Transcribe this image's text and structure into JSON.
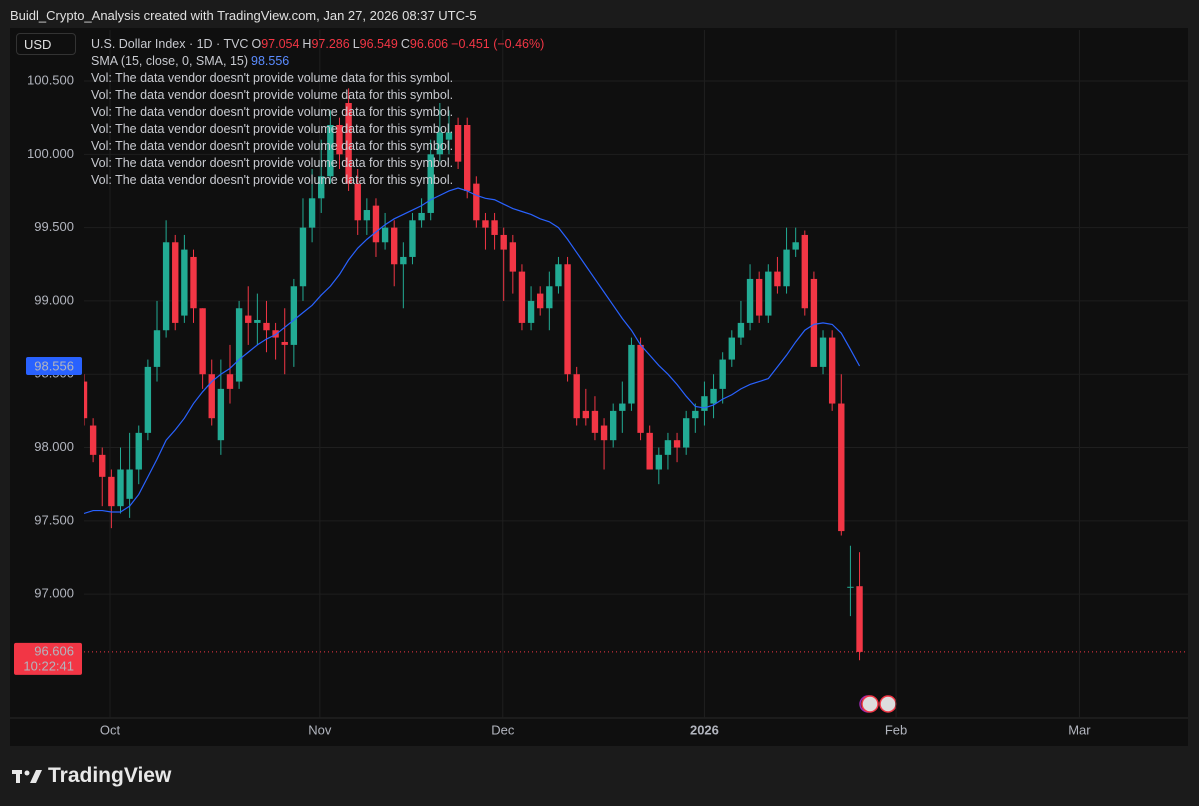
{
  "header": "Buidl_Crypto_Analysis created with TradingView.com, Jan 27, 2026 08:37 UTC-5",
  "brand": "TradingView",
  "chart_data": {
    "type": "candlestick",
    "currency": "USD",
    "title": "U.S. Dollar Index · 1D · TVC",
    "ohlc_labels": [
      "O",
      "H",
      "L",
      "C"
    ],
    "change": "−0.451 (−0.46%)",
    "countdown": "10:22:41",
    "vol_notes": [
      "Vol: The data vendor doesn't provide volume data for this symbol.",
      "Vol: The data vendor doesn't provide volume data for this symbol.",
      "Vol: The data vendor doesn't provide volume data for this symbol.",
      "Vol: The data vendor doesn't provide volume data for this symbol.",
      "Vol: The data vendor doesn't provide volume data for this symbol.",
      "Vol: The data vendor doesn't provide volume data for this symbol.",
      "Vol: The data vendor doesn't provide volume data for this symbol."
    ],
    "up_color": "#22ab94",
    "down_color": "#f23645",
    "grid": true,
    "xlim": [
      0,
      121
    ],
    "xticks": [
      {
        "value": 2.85,
        "label": "Oct"
      },
      {
        "value": 25.85,
        "label": "Nov"
      },
      {
        "value": 45.9,
        "label": "Dec"
      },
      {
        "value": 68.0,
        "label": "2026"
      },
      {
        "value": 89.0,
        "label": "Feb"
      },
      {
        "value": 109.1,
        "label": "Mar"
      }
    ],
    "ylim": [
      96.155,
      100.848
    ],
    "yticks": [
      {
        "value": 97,
        "label": "97.000"
      },
      {
        "value": 97.5,
        "label": "97.500"
      },
      {
        "value": 98,
        "label": "98.000"
      },
      {
        "value": 98.5,
        "label": "98.500"
      },
      {
        "value": 99,
        "label": "99.000"
      },
      {
        "value": 99.5,
        "label": "99.500"
      },
      {
        "value": 100,
        "label": "100.000"
      },
      {
        "value": 100.5,
        "label": "100.500"
      }
    ],
    "open": [
      98.45,
      98.15,
      97.95,
      97.8,
      97.6,
      97.65,
      97.85,
      98.1,
      98.55,
      98.8,
      99.4,
      98.9,
      99.3,
      98.95,
      98.5,
      98.05,
      98.5,
      98.45,
      98.9,
      98.85,
      98.85,
      98.8,
      98.72,
      98.7,
      99.1,
      99.5,
      99.7,
      99.85,
      100.2,
      100.35,
      99.8,
      99.55,
      99.65,
      99.4,
      99.5,
      99.25,
      99.3,
      99.55,
      99.6,
      100.0,
      100.1,
      100.2,
      100.2,
      99.8,
      99.55,
      99.55,
      99.45,
      99.4,
      99.2,
      98.85,
      99.05,
      98.95,
      99.1,
      99.25,
      98.5,
      98.25,
      98.25,
      98.15,
      98.05,
      98.25,
      98.3,
      98.7,
      98.1,
      97.85,
      97.95,
      98.05,
      98.0,
      98.2,
      98.25,
      98.3,
      98.4,
      98.6,
      98.75,
      98.85,
      99.15,
      98.9,
      99.2,
      99.1,
      99.35,
      99.45,
      99.15,
      98.55,
      98.75,
      98.3,
      97.05,
      97.054
    ],
    "high": [
      98.5,
      98.2,
      98.0,
      97.85,
      98.0,
      98.1,
      98.15,
      98.6,
      99.0,
      99.55,
      99.45,
      99.45,
      99.35,
      98.95,
      98.6,
      98.6,
      98.7,
      99.0,
      99.1,
      99.05,
      99.0,
      98.85,
      98.95,
      99.15,
      99.7,
      99.9,
      100.1,
      100.3,
      100.25,
      100.45,
      99.9,
      99.7,
      99.7,
      99.6,
      99.55,
      99.4,
      99.6,
      99.7,
      100.1,
      100.35,
      100.3,
      100.25,
      100.25,
      99.85,
      99.6,
      99.6,
      99.5,
      99.45,
      99.25,
      99.1,
      99.1,
      99.2,
      99.3,
      99.3,
      98.55,
      98.4,
      98.35,
      98.2,
      98.3,
      98.45,
      98.75,
      98.75,
      98.15,
      98.0,
      98.1,
      98.1,
      98.25,
      98.3,
      98.45,
      98.5,
      98.65,
      98.8,
      99.0,
      99.25,
      99.2,
      99.25,
      99.3,
      99.5,
      99.5,
      99.48,
      99.2,
      98.8,
      98.8,
      98.5,
      97.33,
      97.286
    ],
    "low": [
      98.15,
      97.9,
      97.6,
      97.45,
      97.55,
      97.52,
      97.75,
      98.05,
      98.45,
      98.75,
      98.8,
      98.85,
      98.85,
      98.4,
      98.15,
      97.95,
      98.3,
      98.4,
      98.7,
      98.7,
      98.65,
      98.6,
      98.5,
      98.55,
      99.0,
      99.4,
      99.6,
      99.8,
      99.9,
      99.75,
      99.45,
      99.45,
      99.3,
      99.35,
      99.1,
      98.95,
      99.25,
      99.5,
      99.55,
      99.95,
      100.0,
      99.9,
      99.7,
      99.5,
      99.35,
      99.35,
      99.0,
      99.05,
      98.8,
      98.8,
      98.9,
      98.8,
      99.05,
      98.45,
      98.15,
      98.15,
      98.05,
      97.85,
      98.0,
      98.1,
      98.25,
      98.05,
      97.85,
      97.75,
      97.85,
      97.9,
      97.95,
      98.1,
      98.15,
      98.2,
      98.3,
      98.55,
      98.7,
      98.8,
      98.85,
      98.85,
      99.05,
      99.05,
      99.3,
      98.9,
      98.55,
      98.5,
      98.25,
      97.4,
      96.85,
      96.549
    ],
    "close": [
      98.2,
      97.95,
      97.8,
      97.6,
      97.85,
      97.85,
      98.1,
      98.55,
      98.8,
      99.4,
      98.85,
      99.35,
      98.95,
      98.5,
      98.2,
      98.4,
      98.4,
      98.95,
      98.85,
      98.87,
      98.8,
      98.75,
      98.7,
      99.1,
      99.5,
      99.7,
      99.85,
      100.2,
      100.0,
      99.8,
      99.55,
      99.62,
      99.4,
      99.5,
      99.25,
      99.3,
      99.55,
      99.6,
      100.0,
      100.15,
      100.15,
      99.95,
      99.75,
      99.55,
      99.5,
      99.45,
      99.35,
      99.2,
      98.85,
      99.0,
      98.95,
      99.1,
      99.25,
      98.5,
      98.2,
      98.2,
      98.1,
      98.05,
      98.25,
      98.3,
      98.7,
      98.1,
      97.85,
      97.95,
      98.05,
      98.0,
      98.2,
      98.25,
      98.35,
      98.4,
      98.6,
      98.75,
      98.85,
      99.15,
      98.9,
      99.2,
      99.1,
      99.35,
      99.4,
      98.95,
      98.55,
      98.75,
      98.3,
      97.43,
      97.05,
      96.606
    ],
    "series": [
      {
        "name": "SMA (15, close, 0, SMA, 15)",
        "color": "#2962ff",
        "values": [
          97.55,
          97.57,
          97.57,
          97.56,
          97.56,
          97.6,
          97.68,
          97.8,
          97.92,
          98.05,
          98.12,
          98.2,
          98.3,
          98.38,
          98.45,
          98.5,
          98.54,
          98.6,
          98.65,
          98.7,
          98.74,
          98.77,
          98.82,
          98.87,
          98.92,
          98.97,
          99.04,
          99.1,
          99.18,
          99.28,
          99.36,
          99.42,
          99.47,
          99.52,
          99.56,
          99.59,
          99.62,
          99.65,
          99.69,
          99.72,
          99.75,
          99.77,
          99.75,
          99.72,
          99.7,
          99.69,
          99.66,
          99.63,
          99.61,
          99.59,
          99.56,
          99.54,
          99.5,
          99.42,
          99.33,
          99.24,
          99.15,
          99.06,
          98.97,
          98.88,
          98.8,
          98.7,
          98.63,
          98.56,
          98.5,
          98.43,
          98.35,
          98.28,
          98.27,
          98.29,
          98.33,
          98.36,
          98.4,
          98.43,
          98.45,
          98.47,
          98.55,
          98.63,
          98.72,
          98.8,
          98.84,
          98.85,
          98.84,
          98.78,
          98.67,
          98.556
        ]
      }
    ]
  }
}
